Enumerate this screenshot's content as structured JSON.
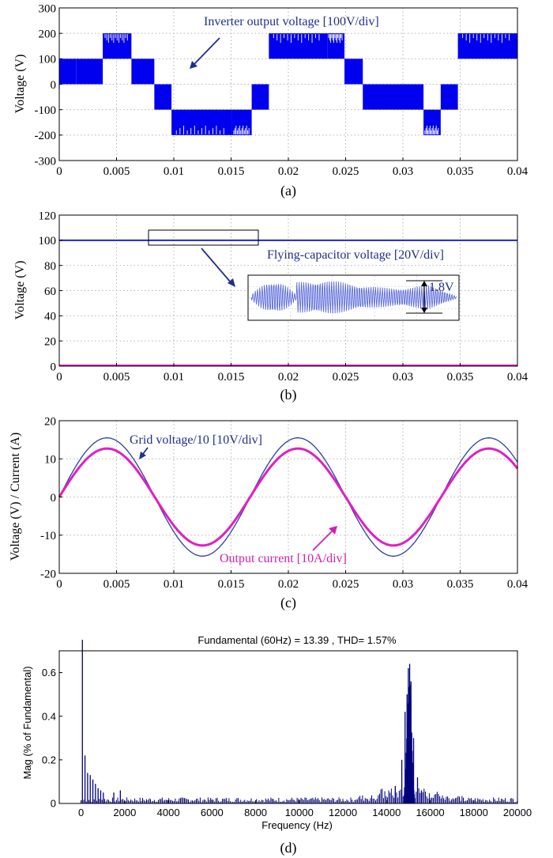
{
  "colors": {
    "inverter": "#0000ee",
    "capacitor": "#2222cc",
    "grid": "#2a3fa8",
    "current": "#e020c0",
    "spectrum": "#00007a",
    "annotation_blue": "#1f2f8c",
    "annotation_magenta": "#d020b0"
  },
  "chart_data": [
    {
      "type": "line",
      "caption": "(a)",
      "ylabel": "Voltage (V)",
      "xlabel": "",
      "xlim": [
        0,
        0.04
      ],
      "ylim": [
        -300,
        300
      ],
      "xticks": [
        "0",
        "0.005",
        "0.01",
        "0.015",
        "0.02",
        "0.025",
        "0.03",
        "0.035",
        "0.04"
      ],
      "yticks": [
        "300",
        "200",
        "100",
        "0",
        "-100",
        "-200",
        "-300"
      ],
      "grid": true,
      "annotations": [
        {
          "text": "Inverter output voltage [100V/div]"
        }
      ],
      "series": [
        {
          "x": [
            0,
            0.0015,
            0.0038,
            0.0063,
            0.0083,
            0.0098,
            0.0151,
            0.0168,
            0.0183,
            0.0234,
            0.0249,
            0.0265,
            0.0318,
            0.0333,
            0.0348,
            0.04
          ],
          "band_low": [
            0,
            0,
            100,
            0,
            -100,
            -100,
            -100,
            0,
            100,
            100,
            0,
            -100,
            -100,
            0,
            100,
            100
          ],
          "band_high": [
            100,
            100,
            200,
            100,
            0,
            -200,
            -200,
            -100,
            200,
            200,
            100,
            0,
            -200,
            -100,
            200,
            200
          ]
        }
      ]
    },
    {
      "type": "line",
      "caption": "(b)",
      "ylabel": "Voltage (V)",
      "xlabel": "",
      "xlim": [
        0,
        0.04
      ],
      "ylim": [
        0,
        120
      ],
      "xticks": [
        "0",
        "0.005",
        "0.01",
        "0.015",
        "0.02",
        "0.025",
        "0.03",
        "0.035",
        "0.04"
      ],
      "yticks": [
        "120",
        "100",
        "80",
        "60",
        "40",
        "20",
        "0"
      ],
      "grid": true,
      "annotations": [
        {
          "text": "Flying-capacitor voltage [20V/div]"
        },
        {
          "text": "1.8V"
        }
      ],
      "series": [
        {
          "x": [
            0,
            0.04
          ],
          "y": [
            100,
            100
          ]
        },
        {
          "x": [
            0,
            0.04
          ],
          "y": [
            0,
            0
          ]
        }
      ],
      "inset": {
        "x_from": 0.0078,
        "x_to": 0.0173,
        "ripple_pp": 1.8
      }
    },
    {
      "type": "line",
      "caption": "(c)",
      "ylabel": "Voltage (V) / Current (A)",
      "xlabel": "",
      "xlim": [
        0,
        0.04
      ],
      "ylim": [
        -20,
        20
      ],
      "xticks": [
        "0",
        "0.005",
        "0.01",
        "0.015",
        "0.02",
        "0.025",
        "0.03",
        "0.035",
        "0.04"
      ],
      "yticks": [
        "20",
        "10",
        "0",
        "-10",
        "-20"
      ],
      "grid": true,
      "annotations": [
        {
          "text": "Grid voltage/10 [10V/div]"
        },
        {
          "text": "Output current [10A/div]"
        }
      ],
      "series": [
        {
          "frequency_hz": 60,
          "amplitude": 15.5
        },
        {
          "frequency_hz": 60,
          "amplitude": 12.7
        }
      ]
    },
    {
      "type": "bar",
      "caption": "(d)",
      "title": "Fundamental (60Hz) = 13.39 , THD= 1.57%",
      "xlabel": "Frequency (Hz)",
      "ylabel": "Mag (% of Fundamental)",
      "xlim": [
        -1000,
        20000
      ],
      "ylim": [
        0,
        0.7
      ],
      "xticks": [
        "0",
        "2000",
        "4000",
        "6000",
        "8000",
        "10000",
        "12000",
        "14000",
        "16000",
        "18000",
        "20000"
      ],
      "yticks": [
        "0.6",
        "0.4",
        "0.2",
        "0"
      ],
      "grid": false,
      "fundamental_hz": 60,
      "series": [
        {
          "x": [
            60,
            180,
            300,
            420,
            540,
            660,
            780,
            900,
            1020,
            1500,
            1800,
            14400,
            14700,
            14850,
            14940,
            15000,
            15060,
            15120,
            15240,
            15420,
            15600
          ],
          "y": [
            0.7,
            0.22,
            0.14,
            0.13,
            0.11,
            0.09,
            0.07,
            0.06,
            0.05,
            0.05,
            0.06,
            0.08,
            0.2,
            0.42,
            0.5,
            0.62,
            0.64,
            0.56,
            0.3,
            0.12,
            0.06
          ]
        }
      ]
    }
  ]
}
